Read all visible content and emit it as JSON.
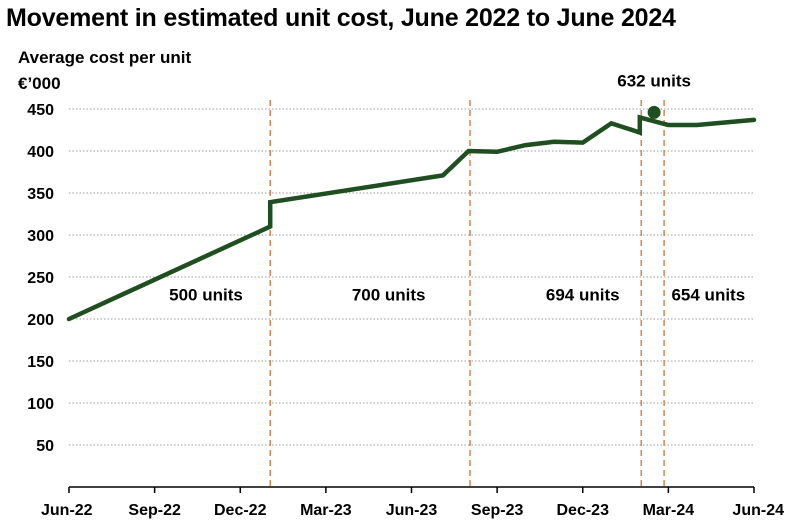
{
  "colors": {
    "line": "#1f4e20",
    "grid": "#999999",
    "divider": "#d9834f",
    "axis": "#000000"
  },
  "chart_data": {
    "type": "line",
    "title": "Movement in estimated unit cost, June 2022 to June 2024",
    "ylabel": "Average cost per unit",
    "yunit": "€’000",
    "xlabel": "",
    "ylim": [
      0,
      450
    ],
    "yticks": [
      50,
      100,
      150,
      200,
      250,
      300,
      350,
      400,
      450
    ],
    "xticks": [
      {
        "label": "Jun-22",
        "x": 0
      },
      {
        "label": "Sep-22",
        "x": 3
      },
      {
        "label": "Dec-22",
        "x": 6
      },
      {
        "label": "Mar-23",
        "x": 9
      },
      {
        "label": "Jun-23",
        "x": 12
      },
      {
        "label": "Sep-23",
        "x": 15
      },
      {
        "label": "Dec-23",
        "x": 18
      },
      {
        "label": "Mar-24",
        "x": 21
      },
      {
        "label": "Jun-24",
        "x": 24
      }
    ],
    "grid": true,
    "series": [
      {
        "name": "Average cost per unit",
        "points": [
          [
            0,
            200
          ],
          [
            7.05,
            310
          ],
          [
            7.05,
            339
          ],
          [
            13.1,
            371
          ],
          [
            14.0,
            400
          ],
          [
            15.0,
            399
          ],
          [
            16.0,
            407
          ],
          [
            17.0,
            411
          ],
          [
            18.0,
            410
          ],
          [
            19.0,
            433
          ],
          [
            20.0,
            422
          ],
          [
            20.0,
            440
          ],
          [
            21.0,
            431
          ],
          [
            22.0,
            431
          ],
          [
            24.0,
            437
          ]
        ]
      }
    ],
    "dividers": [
      7.05,
      14.05,
      20.05,
      20.85
    ],
    "segments": [
      {
        "label": "500 units",
        "x": 4.8,
        "y": 222
      },
      {
        "label": "700 units",
        "x": 11.2,
        "y": 222
      },
      {
        "label": "694 units",
        "x": 18.0,
        "y": 222
      },
      {
        "label": "654 units",
        "x": 22.4,
        "y": 222
      }
    ],
    "annotation": {
      "label": "632 units",
      "marker_x": 20.5,
      "marker_y": 446,
      "label_x": 20.5,
      "label_y": 477
    }
  }
}
